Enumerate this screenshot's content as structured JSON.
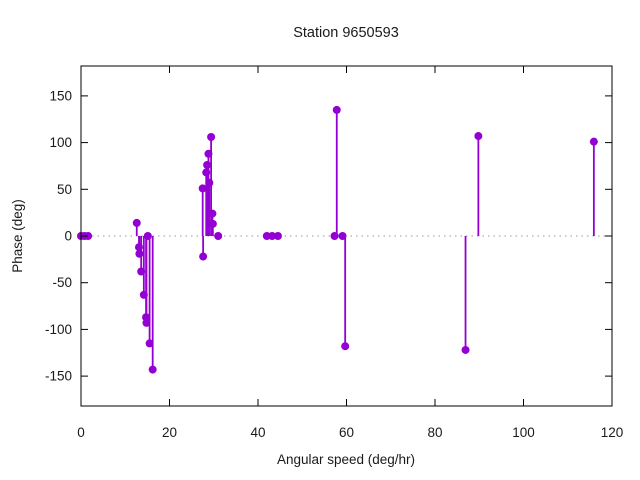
{
  "chart_data": {
    "type": "scatter",
    "style": "stem (impulses + filled points, gnuplot style)",
    "title": "Station 9650593",
    "xlabel": "Angular speed (deg/hr)",
    "ylabel": "Phase (deg)",
    "xlim": [
      0,
      120
    ],
    "ylim": [
      -182,
      182
    ],
    "xticks": [
      0,
      20,
      40,
      60,
      80,
      100,
      120
    ],
    "yticks": [
      -150,
      -100,
      -50,
      0,
      50,
      100,
      150
    ],
    "grid": false,
    "legend": "none",
    "zero_line_style": "dotted",
    "zero_line_color": "#999999",
    "series_color": "#9400d3",
    "axis_color": "#000000",
    "points": [
      [
        0.0,
        0
      ],
      [
        0.8,
        0
      ],
      [
        1.6,
        0
      ],
      [
        12.6,
        14
      ],
      [
        13.1,
        -12
      ],
      [
        13.2,
        -19
      ],
      [
        13.6,
        -38
      ],
      [
        14.2,
        -63
      ],
      [
        14.7,
        -87
      ],
      [
        14.8,
        -93
      ],
      [
        15.1,
        0
      ],
      [
        15.5,
        -115
      ],
      [
        16.2,
        -143
      ],
      [
        27.5,
        51
      ],
      [
        27.6,
        -22
      ],
      [
        28.3,
        68
      ],
      [
        28.5,
        76
      ],
      [
        28.8,
        88
      ],
      [
        29.0,
        57
      ],
      [
        29.4,
        106
      ],
      [
        29.7,
        24
      ],
      [
        29.8,
        13
      ],
      [
        31.0,
        0
      ],
      [
        42.0,
        0
      ],
      [
        43.2,
        0
      ],
      [
        44.5,
        0
      ],
      [
        57.3,
        0
      ],
      [
        57.8,
        135
      ],
      [
        59.1,
        0
      ],
      [
        59.7,
        -118
      ],
      [
        86.9,
        -122
      ],
      [
        89.8,
        107
      ],
      [
        115.9,
        101
      ]
    ]
  }
}
